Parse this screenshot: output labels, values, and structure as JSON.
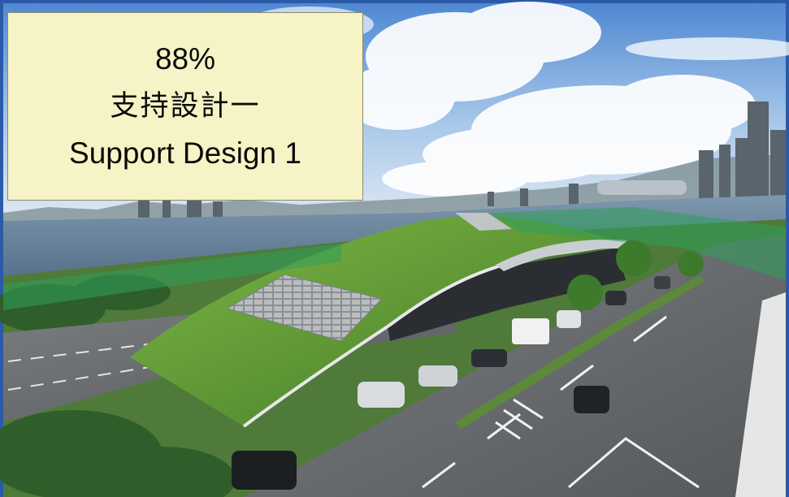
{
  "image": {
    "description_icon": "aerial-photo-green-roof-building",
    "colors": {
      "sky_top": "#5f93d6",
      "sky_bottom": "#cfe0f2",
      "harbour": "#6f8ea6",
      "green_roof": "#5e9a34",
      "road": "#6b6e70",
      "frame_blue": "#2a5aa8",
      "caption_bg": "#f6f3c6"
    }
  },
  "caption": {
    "percent": "88%",
    "title_zh": "支持設計一",
    "title_en": "Support Design 1"
  }
}
